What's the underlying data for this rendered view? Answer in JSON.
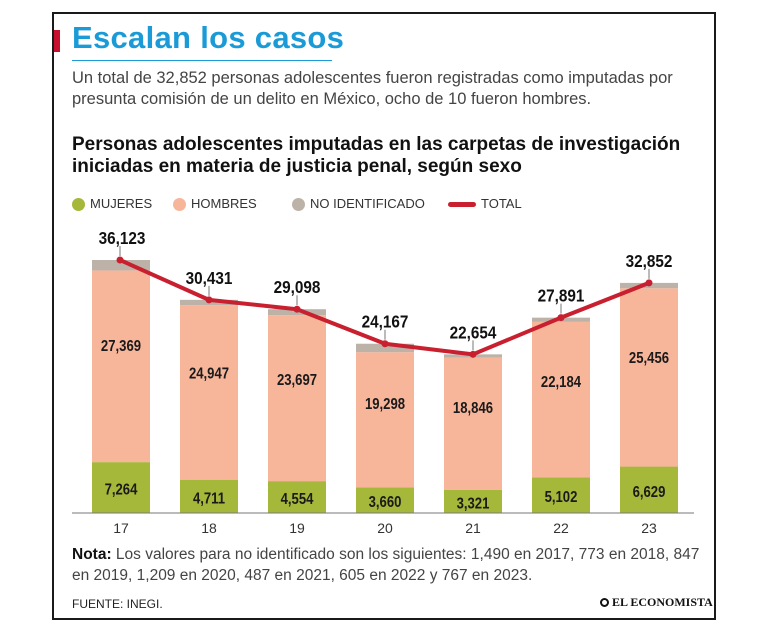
{
  "header": {
    "title": "Escalan los casos",
    "subtitle": "Un total de 32,852 personas adolescentes fueron registradas como imputadas por presunta comisión de un delito en México, ocho de 10 fueron hombres."
  },
  "chart_data": {
    "type": "bar",
    "stacked": true,
    "title": "Personas adolescentes imputadas en las carpetas de investigación iniciadas en materia de justicia penal, según sexo",
    "categories": [
      "17",
      "18",
      "19",
      "20",
      "21",
      "22",
      "23"
    ],
    "series": [
      {
        "name": "MUJERES",
        "color": "#a6b83a",
        "values": [
          7264,
          4711,
          4554,
          3660,
          3321,
          5102,
          6629
        ],
        "labels": [
          "7,264",
          "4,711",
          "4,554",
          "3,660",
          "3,321",
          "5,102",
          "6,629"
        ]
      },
      {
        "name": "HOMBRES",
        "color": "#f7b59a",
        "values": [
          27369,
          24947,
          23697,
          19298,
          18846,
          22184,
          25456
        ],
        "labels": [
          "27,369",
          "24,947",
          "23,697",
          "19,298",
          "18,846",
          "22,184",
          "25,456"
        ]
      },
      {
        "name": "NO IDENTIFICADO",
        "color": "#bdb2a8",
        "values": [
          1490,
          773,
          847,
          1209,
          487,
          605,
          767
        ]
      }
    ],
    "total": {
      "name": "TOTAL",
      "color": "#c8202f",
      "values": [
        36123,
        30431,
        29098,
        24167,
        22654,
        27891,
        32852
      ],
      "labels": [
        "36,123",
        "30,431",
        "29,098",
        "24,167",
        "22,654",
        "27,891",
        "32,852"
      ]
    },
    "legend": "top",
    "grid": false
  },
  "footer": {
    "note_label": "Nota:",
    "note_text": "Los valores para no identificado son los siguientes: 1,490 en 2017, 773 en 2018, 847 en 2019, 1,209 en 2020, 487 en 2021, 605 en 2022 y 767 en 2023.",
    "source": "FUENTE: INEGI.",
    "brand": "EL ECONOMISTA"
  }
}
